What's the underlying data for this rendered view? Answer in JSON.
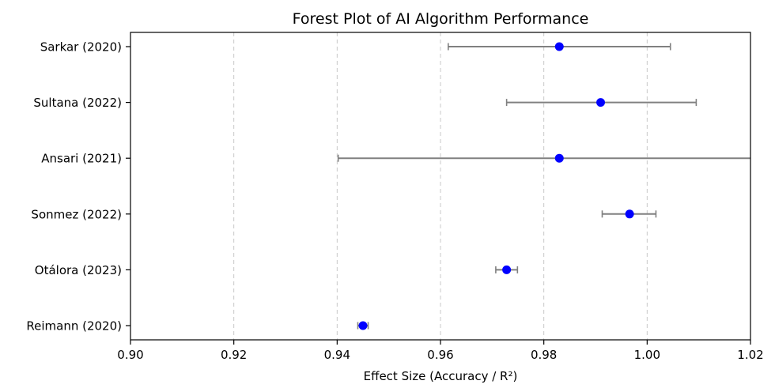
{
  "chart_data": {
    "type": "scatter",
    "title": "Forest Plot of AI Algorithm Performance",
    "xlabel": "Effect Size (Accuracy / R²)",
    "ylabel": "",
    "xlim": [
      0.9,
      1.02
    ],
    "xticks": [
      0.9,
      0.92,
      0.94,
      0.96,
      0.98,
      1.0,
      1.02
    ],
    "xtick_labels": [
      "0.90",
      "0.92",
      "0.94",
      "0.96",
      "0.98",
      "1.00",
      "1.02"
    ],
    "grid": "x dashed",
    "studies": [
      {
        "label": "Sarkar (2020)",
        "estimate": 0.983,
        "ci_low": 0.9615,
        "ci_high": 1.0045
      },
      {
        "label": "Sultana (2022)",
        "estimate": 0.991,
        "ci_low": 0.9728,
        "ci_high": 1.0095
      },
      {
        "label": "Ansari (2021)",
        "estimate": 0.983,
        "ci_low": 0.9402,
        "ci_high": 1.0258
      },
      {
        "label": "Sonmez (2022)",
        "estimate": 0.9966,
        "ci_low": 0.9913,
        "ci_high": 1.0017
      },
      {
        "label": "Otálora (2023)",
        "estimate": 0.9728,
        "ci_low": 0.9707,
        "ci_high": 0.9749
      },
      {
        "label": "Reimann (2020)",
        "estimate": 0.945,
        "ci_low": 0.944,
        "ci_high": 0.946
      }
    ],
    "colors": {
      "point": "#0000ff",
      "errorbar": "#808080",
      "grid": "#c8c8c8",
      "axis": "#000000"
    }
  }
}
